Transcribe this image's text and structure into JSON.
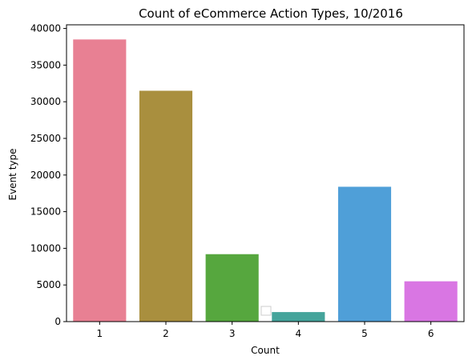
{
  "chart_data": {
    "type": "bar",
    "title": "Count of eCommerce Action Types, 10/2016",
    "xlabel": "Count",
    "ylabel": "Event type",
    "categories": [
      "1",
      "2",
      "3",
      "4",
      "5",
      "6"
    ],
    "values": [
      38500,
      31500,
      9200,
      1300,
      18400,
      5500
    ],
    "colors": [
      "#e88093",
      "#a98f3e",
      "#56a73e",
      "#45a49b",
      "#4f9fd8",
      "#d976e3"
    ],
    "ylim": [
      0,
      40500
    ],
    "yticks": [
      0,
      5000,
      10000,
      15000,
      20000,
      25000,
      30000,
      35000,
      40000
    ],
    "grid": false,
    "legend": "empty, bottom-center"
  }
}
